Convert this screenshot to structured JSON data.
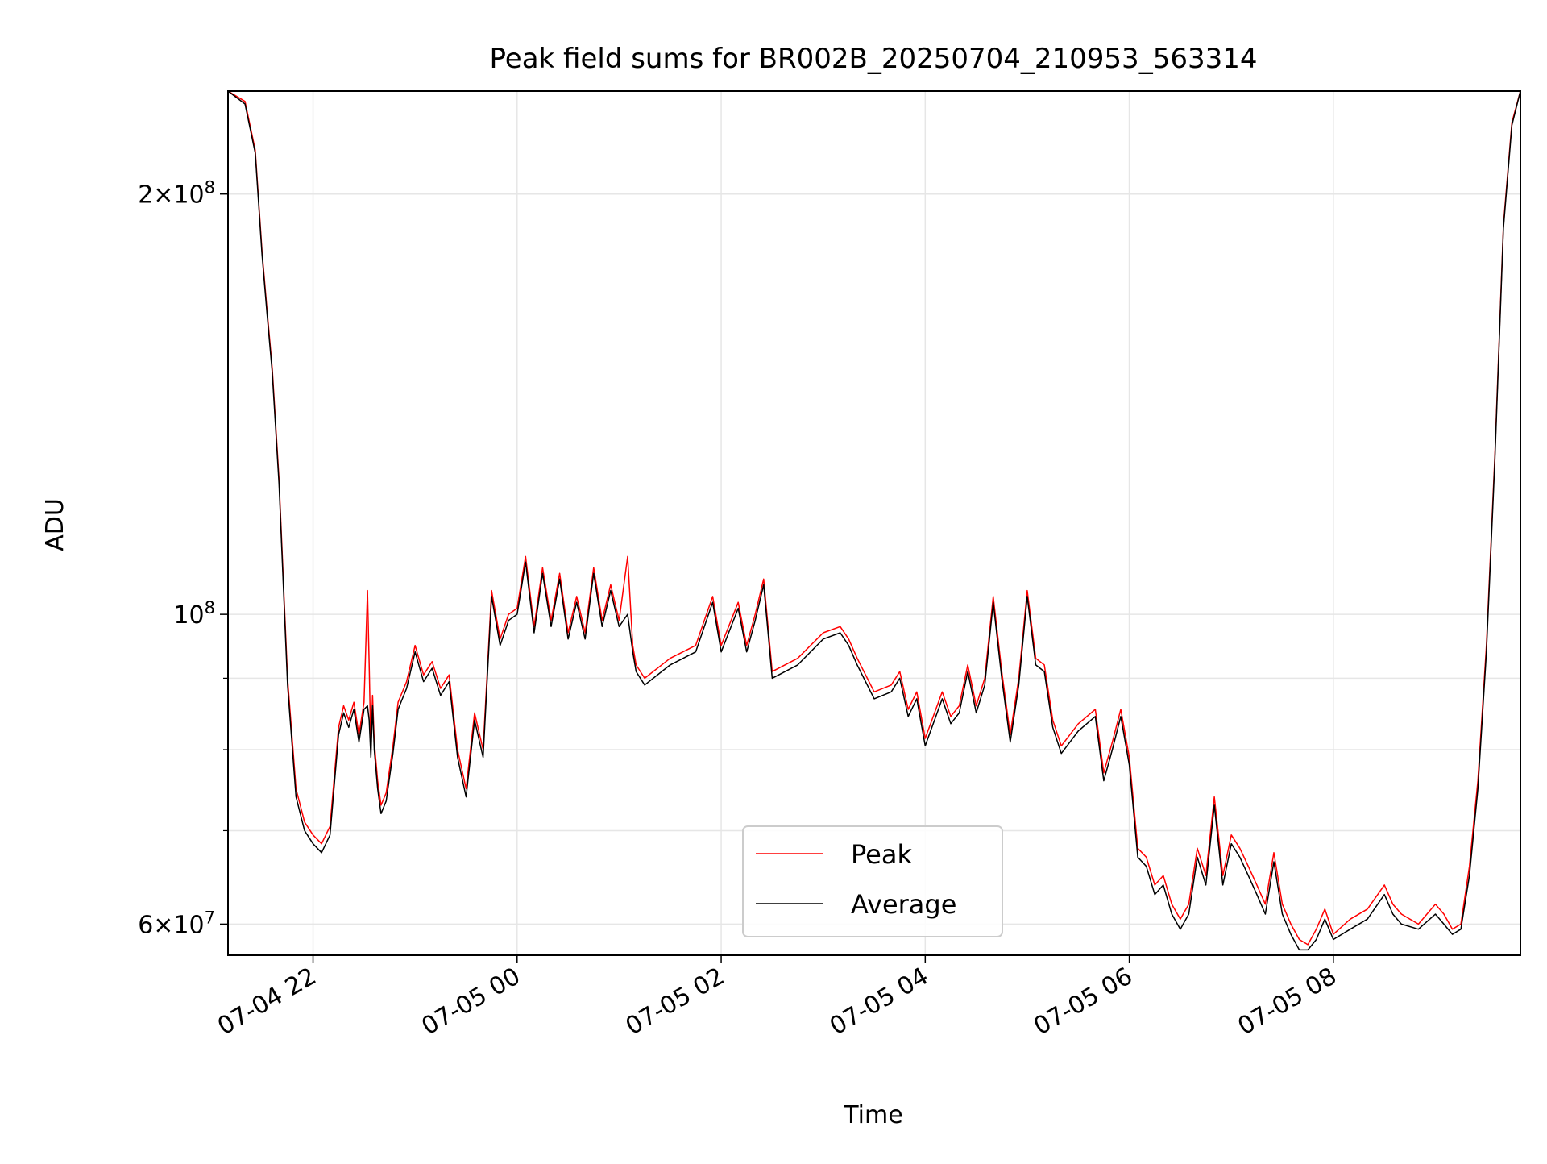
{
  "chart_data": {
    "type": "line",
    "title": "Peak field sums for BR002B_20250704_210953_563314",
    "xlabel": "Time",
    "ylabel": "ADU",
    "x_scale": "time",
    "y_scale": "log",
    "xlim": [
      "2025-07-04 21:10",
      "2025-07-05 09:50"
    ],
    "ylim": [
      57000000,
      237000000
    ],
    "x_ticks": [
      {
        "value": "2025-07-04 22:00",
        "label": "07-04 22"
      },
      {
        "value": "2025-07-05 00:00",
        "label": "07-05 00"
      },
      {
        "value": "2025-07-05 02:00",
        "label": "07-05 02"
      },
      {
        "value": "2025-07-05 04:00",
        "label": "07-05 04"
      },
      {
        "value": "2025-07-05 06:00",
        "label": "07-05 06"
      },
      {
        "value": "2025-07-05 08:00",
        "label": "07-05 08"
      }
    ],
    "y_ticks_major": [
      {
        "value": 60000000,
        "label_mantissa": "6",
        "label_exp": "7"
      },
      {
        "value": 100000000,
        "label_mantissa": "",
        "label_exp": "8"
      },
      {
        "value": 200000000,
        "label_mantissa": "2",
        "label_exp": "8"
      }
    ],
    "y_ticks_minor": [
      70000000,
      80000000,
      90000000
    ],
    "grid": true,
    "legend": {
      "placement": "lower center",
      "entries": [
        "Peak",
        "Average"
      ]
    },
    "series": [
      {
        "name": "Peak",
        "color": "#ff0000",
        "x": [
          "2025-07-04 21:10",
          "2025-07-04 21:20",
          "2025-07-04 21:26",
          "2025-07-04 21:30",
          "2025-07-04 21:33",
          "2025-07-04 21:36",
          "2025-07-04 21:40",
          "2025-07-04 21:45",
          "2025-07-04 21:50",
          "2025-07-04 21:55",
          "2025-07-04 22:00",
          "2025-07-04 22:05",
          "2025-07-04 22:10",
          "2025-07-04 22:15",
          "2025-07-04 22:18",
          "2025-07-04 22:21",
          "2025-07-04 22:24",
          "2025-07-04 22:27",
          "2025-07-04 22:30",
          "2025-07-04 22:32",
          "2025-07-04 22:33",
          "2025-07-04 22:34",
          "2025-07-04 22:35",
          "2025-07-04 22:36",
          "2025-07-04 22:38",
          "2025-07-04 22:40",
          "2025-07-04 22:43",
          "2025-07-04 22:47",
          "2025-07-04 22:50",
          "2025-07-04 22:55",
          "2025-07-04 23:00",
          "2025-07-04 23:05",
          "2025-07-04 23:10",
          "2025-07-04 23:15",
          "2025-07-04 23:20",
          "2025-07-04 23:25",
          "2025-07-04 23:30",
          "2025-07-04 23:35",
          "2025-07-04 23:40",
          "2025-07-04 23:45",
          "2025-07-04 23:50",
          "2025-07-04 23:55",
          "2025-07-05 00:00",
          "2025-07-05 00:05",
          "2025-07-05 00:10",
          "2025-07-05 00:15",
          "2025-07-05 00:20",
          "2025-07-05 00:25",
          "2025-07-05 00:30",
          "2025-07-05 00:35",
          "2025-07-05 00:40",
          "2025-07-05 00:45",
          "2025-07-05 00:50",
          "2025-07-05 00:55",
          "2025-07-05 01:00",
          "2025-07-05 01:05",
          "2025-07-05 01:08",
          "2025-07-05 01:10",
          "2025-07-05 01:15",
          "2025-07-05 01:30",
          "2025-07-05 01:45",
          "2025-07-05 01:55",
          "2025-07-05 02:00",
          "2025-07-05 02:10",
          "2025-07-05 02:15",
          "2025-07-05 02:20",
          "2025-07-05 02:25",
          "2025-07-05 02:30",
          "2025-07-05 02:45",
          "2025-07-05 03:00",
          "2025-07-05 03:10",
          "2025-07-05 03:15",
          "2025-07-05 03:20",
          "2025-07-05 03:30",
          "2025-07-05 03:40",
          "2025-07-05 03:45",
          "2025-07-05 03:50",
          "2025-07-05 03:55",
          "2025-07-05 04:00",
          "2025-07-05 04:10",
          "2025-07-05 04:15",
          "2025-07-05 04:20",
          "2025-07-05 04:25",
          "2025-07-05 04:30",
          "2025-07-05 04:35",
          "2025-07-05 04:40",
          "2025-07-05 04:45",
          "2025-07-05 04:50",
          "2025-07-05 04:55",
          "2025-07-05 05:00",
          "2025-07-05 05:05",
          "2025-07-05 05:10",
          "2025-07-05 05:15",
          "2025-07-05 05:20",
          "2025-07-05 05:30",
          "2025-07-05 05:40",
          "2025-07-05 05:45",
          "2025-07-05 05:50",
          "2025-07-05 05:55",
          "2025-07-05 06:00",
          "2025-07-05 06:05",
          "2025-07-05 06:10",
          "2025-07-05 06:15",
          "2025-07-05 06:20",
          "2025-07-05 06:25",
          "2025-07-05 06:30",
          "2025-07-05 06:35",
          "2025-07-05 06:40",
          "2025-07-05 06:45",
          "2025-07-05 06:50",
          "2025-07-05 06:55",
          "2025-07-05 07:00",
          "2025-07-05 07:05",
          "2025-07-05 07:10",
          "2025-07-05 07:15",
          "2025-07-05 07:20",
          "2025-07-05 07:25",
          "2025-07-05 07:30",
          "2025-07-05 07:35",
          "2025-07-05 07:40",
          "2025-07-05 07:45",
          "2025-07-05 07:50",
          "2025-07-05 07:55",
          "2025-07-05 08:00",
          "2025-07-05 08:10",
          "2025-07-05 08:20",
          "2025-07-05 08:30",
          "2025-07-05 08:35",
          "2025-07-05 08:40",
          "2025-07-05 08:50",
          "2025-07-05 09:00",
          "2025-07-05 09:05",
          "2025-07-05 09:10",
          "2025-07-05 09:15",
          "2025-07-05 09:20",
          "2025-07-05 09:25",
          "2025-07-05 09:30",
          "2025-07-05 09:35",
          "2025-07-05 09:40",
          "2025-07-05 09:45",
          "2025-07-05 09:50"
        ],
        "y": [
          237000000,
          233000000,
          215000000,
          182000000,
          165000000,
          150000000,
          125000000,
          90000000,
          75000000,
          71000000,
          69500000,
          68500000,
          70500000,
          83000000,
          86000000,
          84000000,
          86500000,
          82000000,
          86500000,
          104000000,
          92000000,
          80000000,
          87500000,
          81000000,
          76000000,
          73000000,
          74500000,
          80500000,
          86500000,
          89500000,
          95000000,
          90500000,
          92500000,
          88500000,
          90500000,
          80000000,
          75000000,
          85000000,
          80000000,
          104000000,
          96000000,
          100000000,
          101000000,
          110000000,
          98000000,
          108000000,
          99000000,
          107000000,
          97000000,
          103000000,
          97000000,
          108000000,
          99000000,
          105000000,
          99000000,
          110000000,
          95000000,
          92000000,
          90000000,
          93000000,
          95000000,
          103000000,
          95000000,
          102000000,
          95000000,
          100000000,
          106000000,
          91000000,
          93000000,
          97000000,
          98000000,
          96000000,
          93000000,
          88000000,
          89000000,
          91000000,
          85500000,
          88000000,
          81500000,
          88000000,
          84500000,
          86000000,
          92000000,
          86000000,
          90000000,
          103000000,
          91000000,
          82000000,
          90000000,
          104000000,
          93000000,
          92000000,
          84000000,
          80500000,
          83500000,
          85500000,
          77000000,
          81000000,
          85500000,
          79000000,
          68000000,
          67000000,
          64000000,
          65000000,
          62000000,
          60500000,
          62000000,
          68000000,
          65000000,
          74000000,
          65000000,
          69500000,
          68000000,
          66000000,
          64000000,
          62000000,
          67500000,
          62000000,
          60000000,
          58500000,
          58000000,
          59500000,
          61500000,
          59000000,
          60500000,
          61500000,
          64000000,
          62000000,
          61000000,
          60000000,
          62000000,
          61000000,
          59500000,
          60000000,
          66000000,
          76000000,
          95000000,
          130000000,
          190000000,
          225000000,
          237000000
        ]
      },
      {
        "name": "Average",
        "color": "#000000",
        "x": [
          "2025-07-04 21:10",
          "2025-07-04 21:20",
          "2025-07-04 21:26",
          "2025-07-04 21:30",
          "2025-07-04 21:33",
          "2025-07-04 21:36",
          "2025-07-04 21:40",
          "2025-07-04 21:45",
          "2025-07-04 21:50",
          "2025-07-04 21:55",
          "2025-07-04 22:00",
          "2025-07-04 22:05",
          "2025-07-04 22:10",
          "2025-07-04 22:15",
          "2025-07-04 22:18",
          "2025-07-04 22:21",
          "2025-07-04 22:24",
          "2025-07-04 22:27",
          "2025-07-04 22:30",
          "2025-07-04 22:32",
          "2025-07-04 22:33",
          "2025-07-04 22:34",
          "2025-07-04 22:35",
          "2025-07-04 22:36",
          "2025-07-04 22:38",
          "2025-07-04 22:40",
          "2025-07-04 22:43",
          "2025-07-04 22:47",
          "2025-07-04 22:50",
          "2025-07-04 22:55",
          "2025-07-04 23:00",
          "2025-07-04 23:05",
          "2025-07-04 23:10",
          "2025-07-04 23:15",
          "2025-07-04 23:20",
          "2025-07-04 23:25",
          "2025-07-04 23:30",
          "2025-07-04 23:35",
          "2025-07-04 23:40",
          "2025-07-04 23:45",
          "2025-07-04 23:50",
          "2025-07-04 23:55",
          "2025-07-05 00:00",
          "2025-07-05 00:05",
          "2025-07-05 00:10",
          "2025-07-05 00:15",
          "2025-07-05 00:20",
          "2025-07-05 00:25",
          "2025-07-05 00:30",
          "2025-07-05 00:35",
          "2025-07-05 00:40",
          "2025-07-05 00:45",
          "2025-07-05 00:50",
          "2025-07-05 00:55",
          "2025-07-05 01:00",
          "2025-07-05 01:05",
          "2025-07-05 01:08",
          "2025-07-05 01:10",
          "2025-07-05 01:15",
          "2025-07-05 01:30",
          "2025-07-05 01:45",
          "2025-07-05 01:55",
          "2025-07-05 02:00",
          "2025-07-05 02:10",
          "2025-07-05 02:15",
          "2025-07-05 02:20",
          "2025-07-05 02:25",
          "2025-07-05 02:30",
          "2025-07-05 02:45",
          "2025-07-05 03:00",
          "2025-07-05 03:10",
          "2025-07-05 03:15",
          "2025-07-05 03:20",
          "2025-07-05 03:30",
          "2025-07-05 03:40",
          "2025-07-05 03:45",
          "2025-07-05 03:50",
          "2025-07-05 03:55",
          "2025-07-05 04:00",
          "2025-07-05 04:10",
          "2025-07-05 04:15",
          "2025-07-05 04:20",
          "2025-07-05 04:25",
          "2025-07-05 04:30",
          "2025-07-05 04:35",
          "2025-07-05 04:40",
          "2025-07-05 04:45",
          "2025-07-05 04:50",
          "2025-07-05 04:55",
          "2025-07-05 05:00",
          "2025-07-05 05:05",
          "2025-07-05 05:10",
          "2025-07-05 05:15",
          "2025-07-05 05:20",
          "2025-07-05 05:30",
          "2025-07-05 05:40",
          "2025-07-05 05:45",
          "2025-07-05 05:50",
          "2025-07-05 05:55",
          "2025-07-05 06:00",
          "2025-07-05 06:05",
          "2025-07-05 06:10",
          "2025-07-05 06:15",
          "2025-07-05 06:20",
          "2025-07-05 06:25",
          "2025-07-05 06:30",
          "2025-07-05 06:35",
          "2025-07-05 06:40",
          "2025-07-05 06:45",
          "2025-07-05 06:50",
          "2025-07-05 06:55",
          "2025-07-05 07:00",
          "2025-07-05 07:05",
          "2025-07-05 07:10",
          "2025-07-05 07:15",
          "2025-07-05 07:20",
          "2025-07-05 07:25",
          "2025-07-05 07:30",
          "2025-07-05 07:35",
          "2025-07-05 07:40",
          "2025-07-05 07:45",
          "2025-07-05 07:50",
          "2025-07-05 07:55",
          "2025-07-05 08:00",
          "2025-07-05 08:10",
          "2025-07-05 08:20",
          "2025-07-05 08:30",
          "2025-07-05 08:35",
          "2025-07-05 08:40",
          "2025-07-05 08:50",
          "2025-07-05 09:00",
          "2025-07-05 09:05",
          "2025-07-05 09:10",
          "2025-07-05 09:15",
          "2025-07-05 09:20",
          "2025-07-05 09:25",
          "2025-07-05 09:30",
          "2025-07-05 09:35",
          "2025-07-05 09:40",
          "2025-07-05 09:45",
          "2025-07-05 09:50"
        ],
        "y": [
          237000000,
          232000000,
          214000000,
          181000000,
          164000000,
          149000000,
          124000000,
          89000000,
          74000000,
          70000000,
          68500000,
          67500000,
          69500000,
          82000000,
          85000000,
          83000000,
          85500000,
          81000000,
          85500000,
          86000000,
          84000000,
          79000000,
          86000000,
          80000000,
          75000000,
          72000000,
          73500000,
          79500000,
          85500000,
          88500000,
          94000000,
          89500000,
          91500000,
          87500000,
          89500000,
          79000000,
          74000000,
          84000000,
          79000000,
          103000000,
          95000000,
          99000000,
          100000000,
          109000000,
          97000000,
          107000000,
          98000000,
          106000000,
          96000000,
          102000000,
          96000000,
          107000000,
          98000000,
          104000000,
          98000000,
          100000000,
          94000000,
          91000000,
          89000000,
          92000000,
          94000000,
          102000000,
          94000000,
          101000000,
          94000000,
          99000000,
          105000000,
          90000000,
          92000000,
          96000000,
          97000000,
          95000000,
          92000000,
          87000000,
          88000000,
          90000000,
          84500000,
          87000000,
          80500000,
          87000000,
          83500000,
          85000000,
          91000000,
          85000000,
          89000000,
          102000000,
          90000000,
          81000000,
          89000000,
          103000000,
          92000000,
          91000000,
          83000000,
          79500000,
          82500000,
          84500000,
          76000000,
          80000000,
          84500000,
          78000000,
          67000000,
          66000000,
          63000000,
          64000000,
          61000000,
          59500000,
          61000000,
          67000000,
          64000000,
          73000000,
          64000000,
          68500000,
          67000000,
          65000000,
          63000000,
          61000000,
          66500000,
          61000000,
          59000000,
          57500000,
          57500000,
          58500000,
          60500000,
          58500000,
          59500000,
          60500000,
          63000000,
          61000000,
          60000000,
          59500000,
          61000000,
          60000000,
          59000000,
          59500000,
          65000000,
          75000000,
          94000000,
          129000000,
          189000000,
          224000000,
          237000000
        ]
      }
    ]
  }
}
